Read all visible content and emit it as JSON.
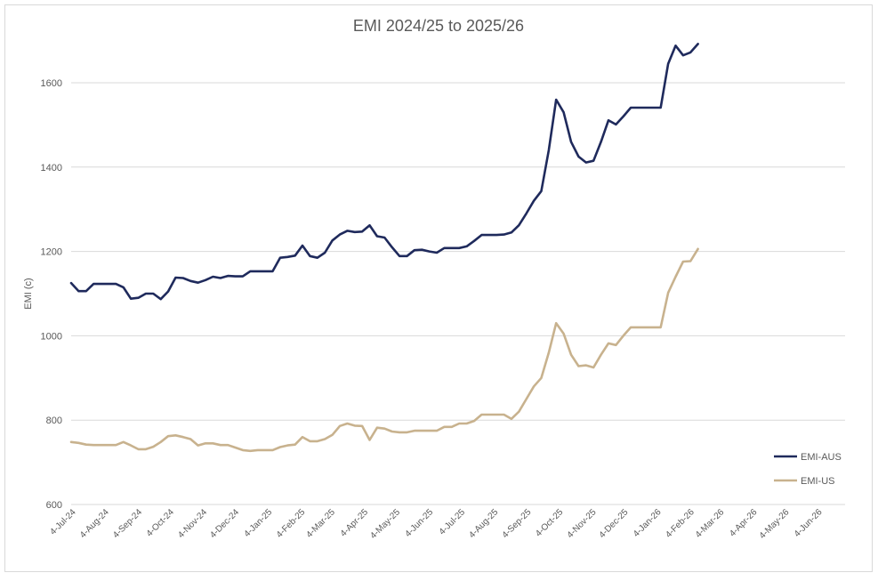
{
  "chart_data": {
    "type": "line",
    "title": "EMI 2024/25 to 2025/26",
    "xlabel": "",
    "ylabel": "EMI (c)",
    "ylim": [
      600,
      1700
    ],
    "yticks": [
      600,
      800,
      1000,
      1200,
      1400,
      1600
    ],
    "xlim": [
      "2024-07-01",
      "2026-06-27"
    ],
    "xticks": [
      "2024-07-04",
      "2024-08-04",
      "2024-09-04",
      "2024-10-04",
      "2024-11-04",
      "2024-12-04",
      "2025-01-04",
      "2025-02-04",
      "2025-03-04",
      "2025-04-04",
      "2025-05-04",
      "2025-06-04",
      "2025-07-04",
      "2025-08-04",
      "2025-09-04",
      "2025-10-04",
      "2025-11-04",
      "2025-12-04",
      "2026-01-04",
      "2026-02-04",
      "2026-03-04",
      "2026-04-04",
      "2026-05-04",
      "2026-06-04"
    ],
    "xtick_labels": [
      "4-Jul-24",
      "4-Aug-24",
      "4-Sep-24",
      "4-Oct-24",
      "4-Nov-24",
      "4-Dec-24",
      "4-Jan-25",
      "4-Feb-25",
      "4-Mar-25",
      "4-Apr-25",
      "4-May-25",
      "4-Jun-25",
      "4-Jul-25",
      "4-Aug-25",
      "4-Sep-25",
      "4-Oct-25",
      "4-Nov-25",
      "4-Dec-25",
      "4-Jan-26",
      "4-Feb-26",
      "4-Mar-26",
      "4-Apr-26",
      "4-May-26",
      "4-Jun-26"
    ],
    "grid": "horizontal",
    "legend_position": "right",
    "x_frequency": "weekly",
    "x_first": "2024-07-01",
    "x_last": "2026-02-09",
    "series": [
      {
        "name": "EMI-AUS",
        "color": "#1f2a5c",
        "values": [
          1125,
          1106,
          1106,
          1123,
          1123,
          1123,
          1123,
          1115,
          1088,
          1090,
          1100,
          1100,
          1087,
          1105,
          1138,
          1137,
          1130,
          1126,
          1132,
          1140,
          1137,
          1142,
          1141,
          1141,
          1153,
          1153,
          1153,
          1153,
          1185,
          1187,
          1190,
          1214,
          1189,
          1185,
          1197,
          1226,
          1240,
          1249,
          1246,
          1247,
          1262,
          1236,
          1233,
          1210,
          1189,
          1189,
          1203,
          1204,
          1200,
          1197,
          1208,
          1208,
          1208,
          1212,
          1225,
          1239,
          1239,
          1239,
          1240,
          1245,
          1262,
          1290,
          1320,
          1343,
          1440,
          1560,
          1530,
          1460,
          1425,
          1411,
          1415,
          1460,
          1511,
          1501,
          1520,
          1541,
          1541,
          1541,
          1541,
          1541,
          1645,
          1688,
          1665,
          1672,
          1692
        ]
      },
      {
        "name": "EMI-US",
        "color": "#c8b28e",
        "values": [
          748,
          746,
          742,
          741,
          741,
          741,
          741,
          748,
          740,
          731,
          731,
          737,
          748,
          762,
          764,
          760,
          755,
          740,
          745,
          745,
          741,
          741,
          735,
          729,
          727,
          729,
          729,
          729,
          736,
          740,
          742,
          760,
          750,
          750,
          755,
          765,
          786,
          792,
          787,
          786,
          753,
          782,
          780,
          773,
          771,
          771,
          775,
          775,
          775,
          775,
          784,
          784,
          792,
          792,
          798,
          813,
          813,
          813,
          813,
          803,
          820,
          850,
          880,
          900,
          960,
          1030,
          1005,
          955,
          928,
          930,
          925,
          955,
          982,
          978,
          1000,
          1020,
          1020,
          1020,
          1020,
          1020,
          1102,
          1140,
          1176,
          1177,
          1206
        ]
      }
    ]
  }
}
